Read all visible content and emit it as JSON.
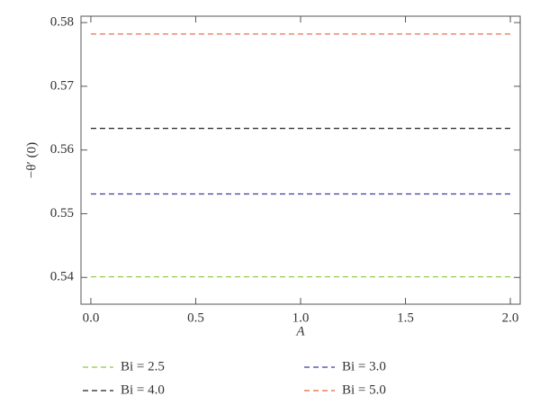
{
  "chart_data": {
    "type": "line",
    "xlabel": "A",
    "ylabel": "−θ′ (0)",
    "x": [
      0,
      2
    ],
    "series": [
      {
        "name": "Bi = 2.5",
        "color": "#8dc63f",
        "values": [
          0.5401,
          0.5401
        ]
      },
      {
        "name": "Bi = 3.0",
        "color": "#3a3a9a",
        "values": [
          0.5531,
          0.5531
        ]
      },
      {
        "name": "Bi = 4.0",
        "color": "#222222",
        "values": [
          0.5634,
          0.5634
        ]
      },
      {
        "name": "Bi = 5.0",
        "color": "#e8603c",
        "values": [
          0.5782,
          0.5782
        ]
      }
    ],
    "xlim": [
      -0.047,
      2.047
    ],
    "xticks": [
      {
        "value": 0,
        "label": "0.0"
      },
      0.5,
      {
        "value": 1,
        "label": "1.0"
      },
      1.5,
      {
        "value": 2,
        "label": "2.0"
      }
    ],
    "ylim": [
      0.5358,
      0.581
    ],
    "yticks": [
      0.54,
      0.55,
      0.56,
      0.57,
      0.58
    ],
    "dashed": true
  }
}
